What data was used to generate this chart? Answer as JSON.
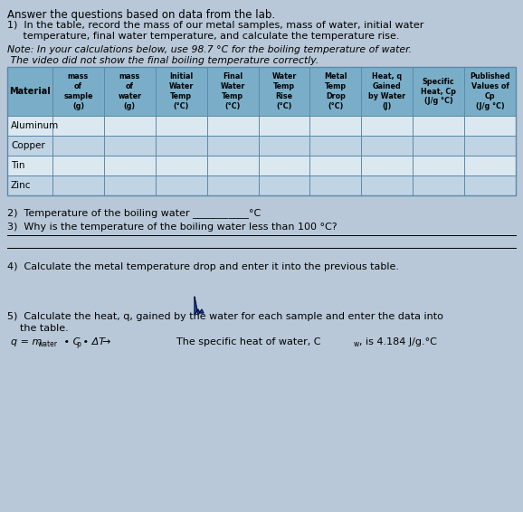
{
  "page_bg": "#b8c8d8",
  "title": "Answer the questions based on data from the lab.",
  "q1_line1": "1)  In the table, record the mass of our metal samples, mass of water, initial water",
  "q1_line2": "     temperature, final water temperature, and calculate the temperature rise.",
  "note_line1": "Note: In your calculations below, use 98.7 °C for the boiling temperature of water.",
  "note_line2": " The video did not show the final boiling temperature correctly.",
  "table_header_bg": "#7aaec8",
  "table_row_odd": "#dce8f0",
  "table_row_even": "#c0d4e4",
  "table_border": "#5a8aaa",
  "col_headers": [
    "mass\nof\nsample\n(g)",
    "mass\nof\nwater\n(g)",
    "Initial\nWater\nTemp\n(°C)",
    "Final\nWater\nTemp\n(°C)",
    "Water\nTemp\nRise\n(°C)",
    "Metal\nTemp\nDrop\n(°C)",
    "Heat, q\nGained\nby Water\n(J)",
    "Specific\nHeat, Cp\n(J/g °C)",
    "Published\nValues of\nCp\n(J/g °C)"
  ],
  "row_labels": [
    "Aluminum",
    "Copper",
    "Tin",
    "Zinc"
  ],
  "q2": "2)  Temperature of the boiling water ___________°C",
  "q3": "3)  Why is the temperature of the boiling water less than 100 °C?",
  "q4": "4)  Calculate the metal temperature drop and enter it into the previous table.",
  "q5_line1": "5)  Calculate the heat, q, gained by the water for each sample and enter the data into",
  "q5_line2": "    the table.",
  "formula": "q = m",
  "formula_sub": "water",
  "formula_rest": " • C",
  "formula_sub2": "p",
  "formula_rest2": " • ΔT",
  "formula_arrow": "→",
  "specific_heat": "The specific heat of water, C",
  "specific_heat_sub": "w",
  "specific_heat_rest": ", is 4.184 J/g.°C"
}
